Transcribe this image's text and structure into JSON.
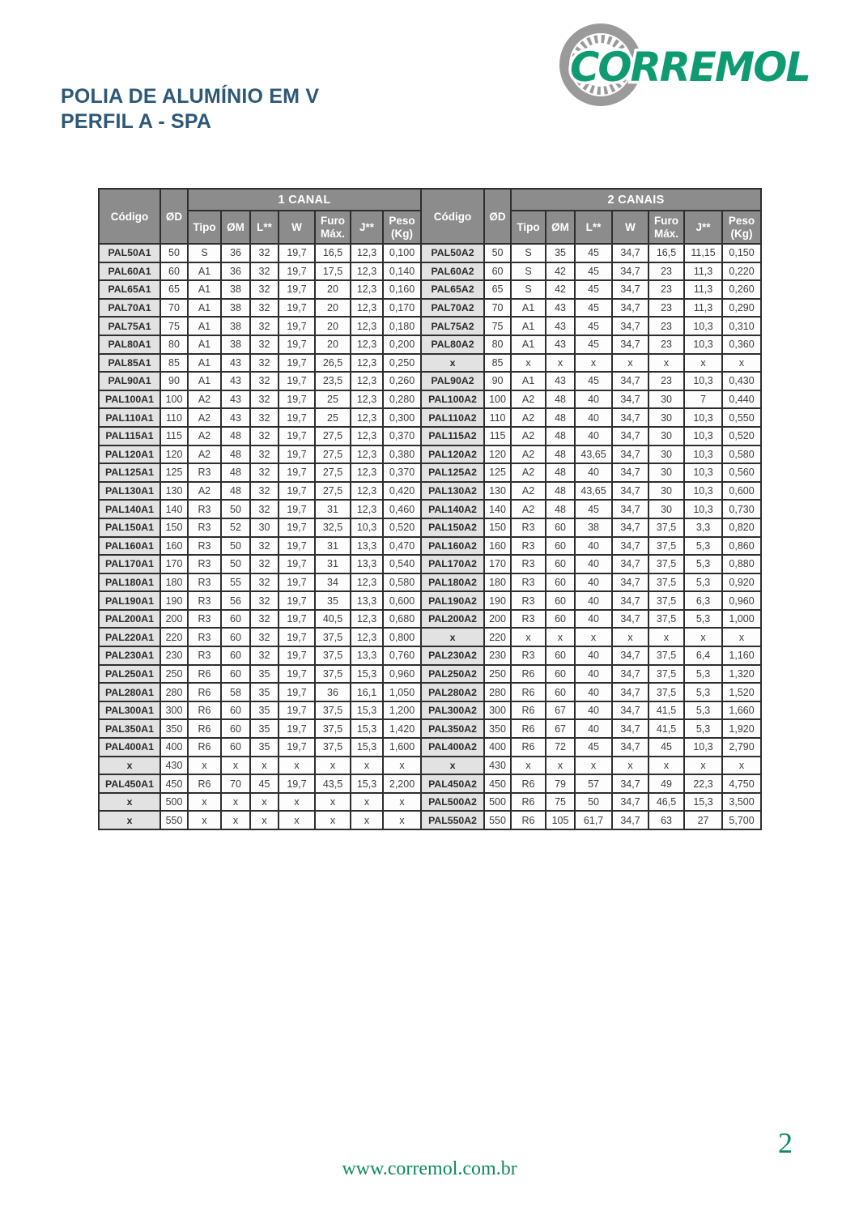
{
  "header": {
    "title_line1": "POLIA DE ALUMÍNIO EM V",
    "title_line2": "PERFIL A - SPA",
    "logo_text": "CORREMOL"
  },
  "colors": {
    "title_blue": "#2d5878",
    "brand_green": "#0f9b72",
    "gear_gray": "#9a9a9a",
    "footer_green": "#0d8a5f",
    "table_header_gray": "#8c8c8c",
    "codigo_cell_gray": "#e2e2e2",
    "border_dark": "#2e2e2e"
  },
  "table": {
    "group_left": "1 CANAL",
    "group_right": "2 CANAIS",
    "col_codigo": "Código",
    "col_od": "ØD",
    "sub_columns": [
      "Tipo",
      "ØM",
      "L**",
      "W",
      "Furo Máx.",
      "J**",
      "Peso (Kg)"
    ],
    "rows_left": [
      [
        "PAL50A1",
        "50",
        "S",
        "36",
        "32",
        "19,7",
        "16,5",
        "12,3",
        "0,100"
      ],
      [
        "PAL60A1",
        "60",
        "A1",
        "36",
        "32",
        "19,7",
        "17,5",
        "12,3",
        "0,140"
      ],
      [
        "PAL65A1",
        "65",
        "A1",
        "38",
        "32",
        "19,7",
        "20",
        "12,3",
        "0,160"
      ],
      [
        "PAL70A1",
        "70",
        "A1",
        "38",
        "32",
        "19,7",
        "20",
        "12,3",
        "0,170"
      ],
      [
        "PAL75A1",
        "75",
        "A1",
        "38",
        "32",
        "19,7",
        "20",
        "12,3",
        "0,180"
      ],
      [
        "PAL80A1",
        "80",
        "A1",
        "38",
        "32",
        "19,7",
        "20",
        "12,3",
        "0,200"
      ],
      [
        "PAL85A1",
        "85",
        "A1",
        "43",
        "32",
        "19,7",
        "26,5",
        "12,3",
        "0,250"
      ],
      [
        "PAL90A1",
        "90",
        "A1",
        "43",
        "32",
        "19,7",
        "23,5",
        "12,3",
        "0,260"
      ],
      [
        "PAL100A1",
        "100",
        "A2",
        "43",
        "32",
        "19,7",
        "25",
        "12,3",
        "0,280"
      ],
      [
        "PAL110A1",
        "110",
        "A2",
        "43",
        "32",
        "19,7",
        "25",
        "12,3",
        "0,300"
      ],
      [
        "PAL115A1",
        "115",
        "A2",
        "48",
        "32",
        "19,7",
        "27,5",
        "12,3",
        "0,370"
      ],
      [
        "PAL120A1",
        "120",
        "A2",
        "48",
        "32",
        "19,7",
        "27,5",
        "12,3",
        "0,380"
      ],
      [
        "PAL125A1",
        "125",
        "R3",
        "48",
        "32",
        "19,7",
        "27,5",
        "12,3",
        "0,370"
      ],
      [
        "PAL130A1",
        "130",
        "A2",
        "48",
        "32",
        "19,7",
        "27,5",
        "12,3",
        "0,420"
      ],
      [
        "PAL140A1",
        "140",
        "R3",
        "50",
        "32",
        "19,7",
        "31",
        "12,3",
        "0,460"
      ],
      [
        "PAL150A1",
        "150",
        "R3",
        "52",
        "30",
        "19,7",
        "32,5",
        "10,3",
        "0,520"
      ],
      [
        "PAL160A1",
        "160",
        "R3",
        "50",
        "32",
        "19,7",
        "31",
        "13,3",
        "0,470"
      ],
      [
        "PAL170A1",
        "170",
        "R3",
        "50",
        "32",
        "19,7",
        "31",
        "13,3",
        "0,540"
      ],
      [
        "PAL180A1",
        "180",
        "R3",
        "55",
        "32",
        "19,7",
        "34",
        "12,3",
        "0,580"
      ],
      [
        "PAL190A1",
        "190",
        "R3",
        "56",
        "32",
        "19,7",
        "35",
        "13,3",
        "0,600"
      ],
      [
        "PAL200A1",
        "200",
        "R3",
        "60",
        "32",
        "19,7",
        "40,5",
        "12,3",
        "0,680"
      ],
      [
        "PAL220A1",
        "220",
        "R3",
        "60",
        "32",
        "19,7",
        "37,5",
        "12,3",
        "0,800"
      ],
      [
        "PAL230A1",
        "230",
        "R3",
        "60",
        "32",
        "19,7",
        "37,5",
        "13,3",
        "0,760"
      ],
      [
        "PAL250A1",
        "250",
        "R6",
        "60",
        "35",
        "19,7",
        "37,5",
        "15,3",
        "0,960"
      ],
      [
        "PAL280A1",
        "280",
        "R6",
        "58",
        "35",
        "19,7",
        "36",
        "16,1",
        "1,050"
      ],
      [
        "PAL300A1",
        "300",
        "R6",
        "60",
        "35",
        "19,7",
        "37,5",
        "15,3",
        "1,200"
      ],
      [
        "PAL350A1",
        "350",
        "R6",
        "60",
        "35",
        "19,7",
        "37,5",
        "15,3",
        "1,420"
      ],
      [
        "PAL400A1",
        "400",
        "R6",
        "60",
        "35",
        "19,7",
        "37,5",
        "15,3",
        "1,600"
      ],
      [
        "x",
        "430",
        "x",
        "x",
        "x",
        "x",
        "x",
        "x",
        "x"
      ],
      [
        "PAL450A1",
        "450",
        "R6",
        "70",
        "45",
        "19,7",
        "43,5",
        "15,3",
        "2,200"
      ],
      [
        "x",
        "500",
        "x",
        "x",
        "x",
        "x",
        "x",
        "x",
        "x"
      ],
      [
        "x",
        "550",
        "x",
        "x",
        "x",
        "x",
        "x",
        "x",
        "x"
      ]
    ],
    "rows_right": [
      [
        "PAL50A2",
        "50",
        "S",
        "35",
        "45",
        "34,7",
        "16,5",
        "11,15",
        "0,150"
      ],
      [
        "PAL60A2",
        "60",
        "S",
        "42",
        "45",
        "34,7",
        "23",
        "11,3",
        "0,220"
      ],
      [
        "PAL65A2",
        "65",
        "S",
        "42",
        "45",
        "34,7",
        "23",
        "11,3",
        "0,260"
      ],
      [
        "PAL70A2",
        "70",
        "A1",
        "43",
        "45",
        "34,7",
        "23",
        "11,3",
        "0,290"
      ],
      [
        "PAL75A2",
        "75",
        "A1",
        "43",
        "45",
        "34,7",
        "23",
        "10,3",
        "0,310"
      ],
      [
        "PAL80A2",
        "80",
        "A1",
        "43",
        "45",
        "34,7",
        "23",
        "10,3",
        "0,360"
      ],
      [
        "x",
        "85",
        "x",
        "x",
        "x",
        "x",
        "x",
        "x",
        "x"
      ],
      [
        "PAL90A2",
        "90",
        "A1",
        "43",
        "45",
        "34,7",
        "23",
        "10,3",
        "0,430"
      ],
      [
        "PAL100A2",
        "100",
        "A2",
        "48",
        "40",
        "34,7",
        "30",
        "7",
        "0,440"
      ],
      [
        "PAL110A2",
        "110",
        "A2",
        "48",
        "40",
        "34,7",
        "30",
        "10,3",
        "0,550"
      ],
      [
        "PAL115A2",
        "115",
        "A2",
        "48",
        "40",
        "34,7",
        "30",
        "10,3",
        "0,520"
      ],
      [
        "PAL120A2",
        "120",
        "A2",
        "48",
        "43,65",
        "34,7",
        "30",
        "10,3",
        "0,580"
      ],
      [
        "PAL125A2",
        "125",
        "A2",
        "48",
        "40",
        "34,7",
        "30",
        "10,3",
        "0,560"
      ],
      [
        "PAL130A2",
        "130",
        "A2",
        "48",
        "43,65",
        "34,7",
        "30",
        "10,3",
        "0,600"
      ],
      [
        "PAL140A2",
        "140",
        "A2",
        "48",
        "45",
        "34,7",
        "30",
        "10,3",
        "0,730"
      ],
      [
        "PAL150A2",
        "150",
        "R3",
        "60",
        "38",
        "34,7",
        "37,5",
        "3,3",
        "0,820"
      ],
      [
        "PAL160A2",
        "160",
        "R3",
        "60",
        "40",
        "34,7",
        "37,5",
        "5,3",
        "0,860"
      ],
      [
        "PAL170A2",
        "170",
        "R3",
        "60",
        "40",
        "34,7",
        "37,5",
        "5,3",
        "0,880"
      ],
      [
        "PAL180A2",
        "180",
        "R3",
        "60",
        "40",
        "34,7",
        "37,5",
        "5,3",
        "0,920"
      ],
      [
        "PAL190A2",
        "190",
        "R3",
        "60",
        "40",
        "34,7",
        "37,5",
        "6,3",
        "0,960"
      ],
      [
        "PAL200A2",
        "200",
        "R3",
        "60",
        "40",
        "34,7",
        "37,5",
        "5,3",
        "1,000"
      ],
      [
        "x",
        "220",
        "x",
        "x",
        "x",
        "x",
        "x",
        "x",
        "x"
      ],
      [
        "PAL230A2",
        "230",
        "R3",
        "60",
        "40",
        "34,7",
        "37,5",
        "6,4",
        "1,160"
      ],
      [
        "PAL250A2",
        "250",
        "R6",
        "60",
        "40",
        "34,7",
        "37,5",
        "5,3",
        "1,320"
      ],
      [
        "PAL280A2",
        "280",
        "R6",
        "60",
        "40",
        "34,7",
        "37,5",
        "5,3",
        "1,520"
      ],
      [
        "PAL300A2",
        "300",
        "R6",
        "67",
        "40",
        "34,7",
        "41,5",
        "5,3",
        "1,660"
      ],
      [
        "PAL350A2",
        "350",
        "R6",
        "67",
        "40",
        "34,7",
        "41,5",
        "5,3",
        "1,920"
      ],
      [
        "PAL400A2",
        "400",
        "R6",
        "72",
        "45",
        "34,7",
        "45",
        "10,3",
        "2,790"
      ],
      [
        "x",
        "430",
        "x",
        "x",
        "x",
        "x",
        "x",
        "x",
        "x"
      ],
      [
        "PAL450A2",
        "450",
        "R6",
        "79",
        "57",
        "34,7",
        "49",
        "22,3",
        "4,750"
      ],
      [
        "PAL500A2",
        "500",
        "R6",
        "75",
        "50",
        "34,7",
        "46,5",
        "15,3",
        "3,500"
      ],
      [
        "PAL550A2",
        "550",
        "R6",
        "105",
        "61,7",
        "34,7",
        "63",
        "27",
        "5,700"
      ]
    ]
  },
  "footer": {
    "website": "www.corremol.com.br",
    "page_number": "2"
  }
}
